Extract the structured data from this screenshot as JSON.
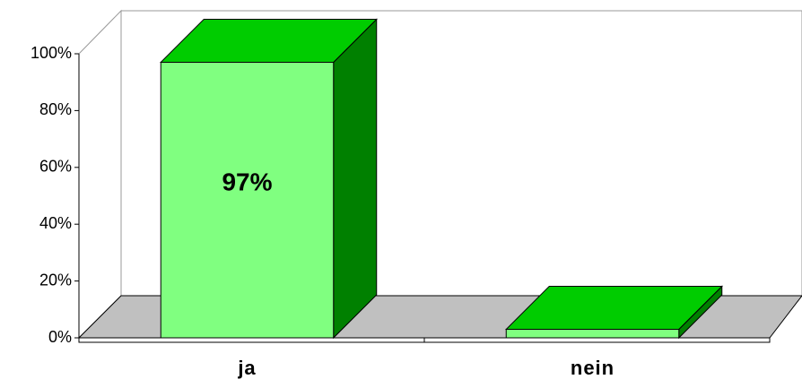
{
  "chart_data": {
    "type": "bar3d",
    "categories": [
      "ja",
      "nein"
    ],
    "values": [
      97,
      3
    ],
    "value_labels": [
      "97%",
      null
    ],
    "colors": {
      "front": "#80ff80",
      "top": "#00cc00",
      "side": "#008000"
    },
    "ylim": [
      0,
      100
    ],
    "yticks": [
      {
        "value": 0,
        "label": "0%"
      },
      {
        "value": 20,
        "label": "20%"
      },
      {
        "value": 40,
        "label": "40%"
      },
      {
        "value": 60,
        "label": "60%"
      },
      {
        "value": 80,
        "label": "80%"
      },
      {
        "value": 100,
        "label": "100%"
      }
    ],
    "grid": false
  }
}
